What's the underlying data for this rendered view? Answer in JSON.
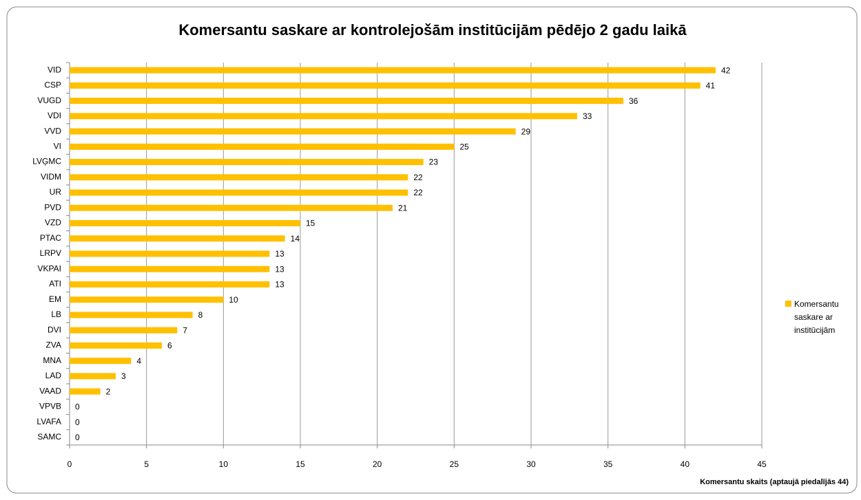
{
  "chart_data": {
    "type": "bar",
    "orientation": "horizontal",
    "title": "Komersantu saskare ar kontrolejošām institūcijām pēdējo 2 gadu laikā",
    "xlabel": "Komersantu skaits (aptaujā piedalījās 44)",
    "categories": [
      "VID",
      "CSP",
      "VUGD",
      "VDI",
      "VVD",
      "VI",
      "LVĢMC",
      "VIDM",
      "UR",
      "PVD",
      "VZD",
      "PTAC",
      "LRPV",
      "VKPAI",
      "ATI",
      "EM",
      "LB",
      "DVI",
      "ZVA",
      "MNA",
      "LAD",
      "VAAD",
      "VPVB",
      "LVAFA",
      "SAMC"
    ],
    "series": [
      {
        "name": "Komersantu saskare ar institūcijām",
        "color": "#ffc000",
        "values": [
          42,
          41,
          36,
          33,
          29,
          25,
          23,
          22,
          22,
          21,
          15,
          14,
          13,
          13,
          13,
          10,
          8,
          7,
          6,
          4,
          3,
          2,
          0,
          0,
          0
        ]
      }
    ],
    "xlim": [
      0,
      45
    ],
    "xticks": [
      0,
      5,
      10,
      15,
      20,
      25,
      30,
      35,
      40,
      45
    ],
    "grid": true,
    "legend": "right"
  }
}
